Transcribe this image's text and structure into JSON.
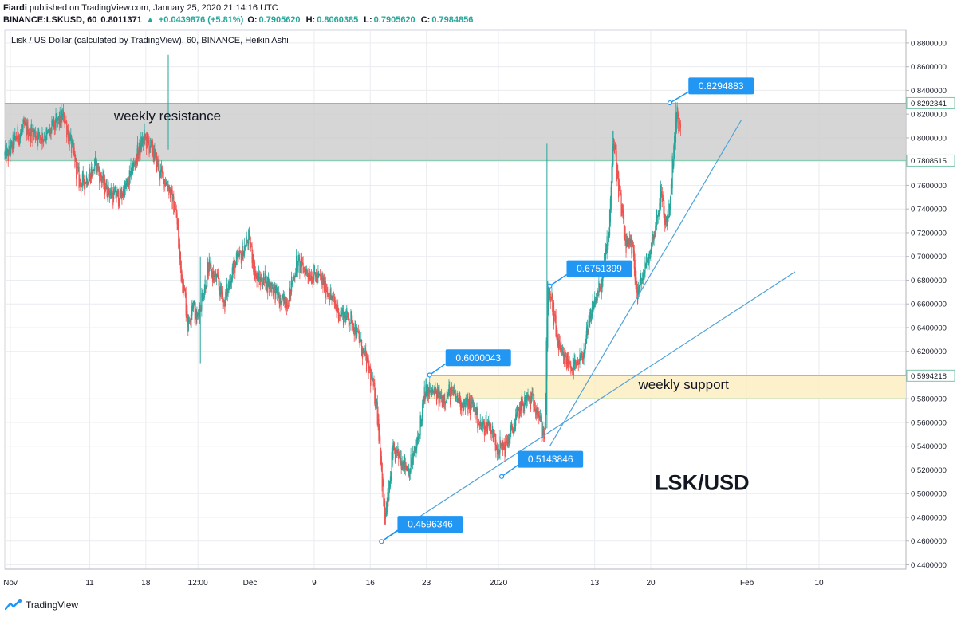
{
  "header": {
    "author": "Fiardi",
    "published": "published on TradingView.com, January 25, 2020 21:14:16 UTC",
    "symbol": "BINANCE:LSKUSD, 60",
    "last": "0.8011371",
    "arrow": "▲",
    "change": "+0.0439876 (+5.81%)",
    "ohlc_o_label": "O:",
    "ohlc_o": "0.7905620",
    "ohlc_h_label": "H:",
    "ohlc_h": "0.8060385",
    "ohlc_l_label": "L:",
    "ohlc_l": "0.7905620",
    "ohlc_c_label": "C:",
    "ohlc_c": "0.7984856"
  },
  "footer": {
    "brand": "TradingView"
  },
  "colors": {
    "up": "#26a69a",
    "down": "#ef5350",
    "callout": "#2196f3",
    "trendline": "#4fa3d8",
    "resistance_fill": "#cfcfcf",
    "support_fill": "#fdeec2",
    "zone_border": "#7bc4a8",
    "grid": "#e9ecf1"
  },
  "chart_data": {
    "type": "candlestick",
    "chart_style": "Heikin Ashi",
    "title": "Lisk / US Dollar (calculated by TradingView), 60, BINANCE, Heikin Ashi",
    "watermark": "LSK/USD",
    "ylim": [
      0.4363,
      0.8907
    ],
    "y_ticks": [
      "0.8800000",
      "0.8600000",
      "0.8400000",
      "0.8200000",
      "0.8000000",
      "0.7800000",
      "0.7600000",
      "0.7400000",
      "0.7200000",
      "0.7000000",
      "0.6800000",
      "0.6600000",
      "0.6400000",
      "0.6200000",
      "0.6000000",
      "0.5800000",
      "0.5600000",
      "0.5400000",
      "0.5200000",
      "0.5000000",
      "0.4800000",
      "0.4600000",
      "0.4400000"
    ],
    "x_ticks": [
      {
        "label": "Nov",
        "day": 0.3
      },
      {
        "label": "11",
        "day": 10.2
      },
      {
        "label": "18",
        "day": 17.2
      },
      {
        "label": "12:00",
        "day": 23.7
      },
      {
        "label": "Dec",
        "day": 30.2
      },
      {
        "label": "9",
        "day": 38.2
      },
      {
        "label": "16",
        "day": 45.2
      },
      {
        "label": "23",
        "day": 52.2
      },
      {
        "label": "2020",
        "day": 61.2
      },
      {
        "label": "13",
        "day": 73.2
      },
      {
        "label": "20",
        "day": 80.2
      },
      {
        "label": "Feb",
        "day": 92.2
      },
      {
        "label": "10",
        "day": 101.2
      }
    ],
    "series_path_day_price": [
      [
        0,
        0.785
      ],
      [
        1,
        0.8
      ],
      [
        2,
        0.808
      ],
      [
        3,
        0.805
      ],
      [
        4,
        0.801
      ],
      [
        5,
        0.802
      ],
      [
        6,
        0.812
      ],
      [
        7,
        0.818
      ],
      [
        8,
        0.79
      ],
      [
        9,
        0.76
      ],
      [
        10,
        0.768
      ],
      [
        11,
        0.777
      ],
      [
        12,
        0.76
      ],
      [
        13,
        0.752
      ],
      [
        14,
        0.75
      ],
      [
        15,
        0.762
      ],
      [
        16,
        0.785
      ],
      [
        17,
        0.8
      ],
      [
        18,
        0.79
      ],
      [
        19,
        0.77
      ],
      [
        20,
        0.76
      ],
      [
        21,
        0.735
      ],
      [
        21.5,
        0.69
      ],
      [
        22,
        0.67
      ],
      [
        22.5,
        0.64
      ],
      [
        23,
        0.665
      ],
      [
        23.5,
        0.645
      ],
      [
        24,
        0.66
      ],
      [
        25,
        0.69
      ],
      [
        26,
        0.68
      ],
      [
        27,
        0.66
      ],
      [
        28,
        0.69
      ],
      [
        29,
        0.7
      ],
      [
        30,
        0.715
      ],
      [
        30.5,
        0.7
      ],
      [
        31,
        0.68
      ],
      [
        32,
        0.68
      ],
      [
        33,
        0.675
      ],
      [
        34,
        0.66
      ],
      [
        35,
        0.665
      ],
      [
        36,
        0.695
      ],
      [
        37,
        0.688
      ],
      [
        38,
        0.685
      ],
      [
        39,
        0.68
      ],
      [
        40,
        0.67
      ],
      [
        41,
        0.655
      ],
      [
        42,
        0.65
      ],
      [
        43,
        0.645
      ],
      [
        44,
        0.625
      ],
      [
        45,
        0.605
      ],
      [
        46,
        0.575
      ],
      [
        46.5,
        0.53
      ],
      [
        47,
        0.475
      ],
      [
        47.5,
        0.5
      ],
      [
        48,
        0.535
      ],
      [
        49,
        0.53
      ],
      [
        50,
        0.52
      ],
      [
        51,
        0.54
      ],
      [
        52,
        0.585
      ],
      [
        53,
        0.585
      ],
      [
        54,
        0.58
      ],
      [
        55,
        0.585
      ],
      [
        56,
        0.58
      ],
      [
        57,
        0.575
      ],
      [
        58,
        0.575
      ],
      [
        59,
        0.555
      ],
      [
        60,
        0.56
      ],
      [
        61,
        0.54
      ],
      [
        62,
        0.54
      ],
      [
        63,
        0.555
      ],
      [
        64,
        0.575
      ],
      [
        65,
        0.58
      ],
      [
        66,
        0.575
      ],
      [
        66.5,
        0.555
      ],
      [
        67,
        0.55
      ],
      [
        67.3,
        0.67
      ],
      [
        67.8,
        0.665
      ],
      [
        68.5,
        0.63
      ],
      [
        69,
        0.615
      ],
      [
        70,
        0.61
      ],
      [
        71,
        0.605
      ],
      [
        72,
        0.625
      ],
      [
        73,
        0.66
      ],
      [
        74,
        0.675
      ],
      [
        75,
        0.725
      ],
      [
        75.5,
        0.805
      ],
      [
        76,
        0.77
      ],
      [
        77,
        0.71
      ],
      [
        78,
        0.705
      ],
      [
        78.5,
        0.665
      ],
      [
        79,
        0.68
      ],
      [
        80,
        0.7
      ],
      [
        81,
        0.735
      ],
      [
        81.5,
        0.755
      ],
      [
        82,
        0.725
      ],
      [
        82.5,
        0.74
      ],
      [
        83,
        0.785
      ],
      [
        83.5,
        0.822
      ],
      [
        84,
        0.8
      ]
    ],
    "zones": [
      {
        "name": "weekly resistance",
        "low": 0.7808515,
        "high": 0.8292341,
        "from_day": -2,
        "label_day": 19.9,
        "label_price": 0.8146
      },
      {
        "name": "weekly support",
        "low": 0.58,
        "high": 0.5994218,
        "from_day": 52.6,
        "label_day": 84.3,
        "label_price": 0.5883
      }
    ],
    "trendlines": [
      {
        "from": [
          46.6,
          0.4596
        ],
        "to": [
          98.2,
          0.687
        ]
      },
      {
        "from": [
          67.6,
          0.54
        ],
        "to": [
          91.5,
          0.815
        ]
      }
    ],
    "callouts": [
      {
        "text": "0.8294883",
        "day": 82.6,
        "price": 0.8295,
        "box_day": 84.9,
        "box_price": 0.8441
      },
      {
        "text": "0.6751399",
        "day": 67.6,
        "price": 0.6751,
        "box_day": 69.7,
        "box_price": 0.69
      },
      {
        "text": "0.6000043",
        "day": 52.6,
        "price": 0.6,
        "box_day": 54.6,
        "box_price": 0.6149
      },
      {
        "text": "0.5143846",
        "day": 61.6,
        "price": 0.5144,
        "box_day": 63.6,
        "box_price": 0.5293
      },
      {
        "text": "0.4596346",
        "day": 46.6,
        "price": 0.4596,
        "box_day": 48.6,
        "box_price": 0.4745
      }
    ],
    "price_tags": [
      {
        "text": "0.8292341",
        "price": 0.8292341
      },
      {
        "text": "0.7808515",
        "price": 0.7808515
      },
      {
        "text": "0.5994218",
        "price": 0.5994218
      }
    ]
  }
}
